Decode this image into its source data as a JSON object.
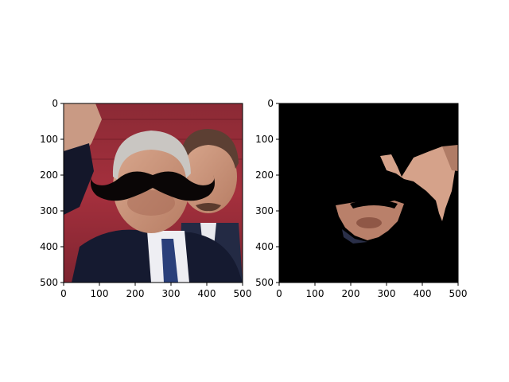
{
  "panels": [
    {
      "name": "left",
      "image": "photo of two men in suits with a black mustache overlay",
      "xlim": [
        0,
        500
      ],
      "ylim": [
        0,
        500
      ],
      "xticks": [
        "0",
        "100",
        "200",
        "300",
        "400",
        "500"
      ],
      "yticks": [
        "0",
        "100",
        "200",
        "300",
        "400",
        "500"
      ]
    },
    {
      "name": "right",
      "image": "black mask with skin-region cutout of faces",
      "xlim": [
        0,
        500
      ],
      "ylim": [
        0,
        500
      ],
      "xticks": [
        "0",
        "100",
        "200",
        "300",
        "400",
        "500"
      ],
      "yticks": [
        "0",
        "100",
        "200",
        "300",
        "400",
        "500"
      ]
    }
  ]
}
